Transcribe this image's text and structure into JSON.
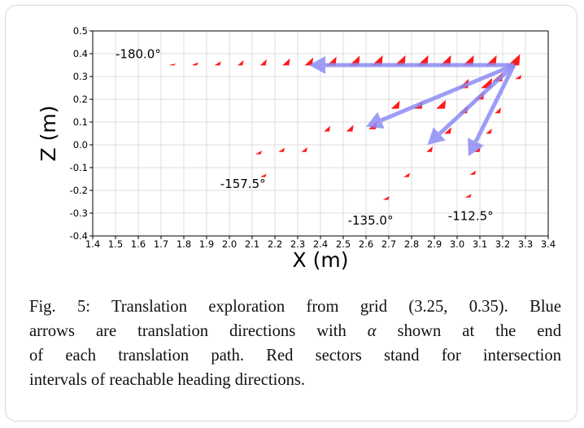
{
  "figure": {
    "caption_lines": [
      {
        "parts": [
          {
            "t": "Fig. 5: Translation exploration from grid (3.25, 0.35). Blue",
            "m": false
          }
        ]
      },
      {
        "parts": [
          {
            "t": "arrows are translation directions with ",
            "m": false
          },
          {
            "t": "α",
            "m": true
          },
          {
            "t": " shown at the end",
            "m": false
          }
        ]
      },
      {
        "parts": [
          {
            "t": "of each translation path. Red sectors stand for intersection",
            "m": false
          }
        ]
      },
      {
        "parts": [
          {
            "t": "intervals of reachable heading directions.",
            "m": false
          }
        ]
      }
    ]
  },
  "chart_data": {
    "type": "scatter",
    "xlabel": "X (m)",
    "ylabel": "Z (m)",
    "xlim": [
      1.4,
      3.4
    ],
    "ylim": [
      -0.4,
      0.5
    ],
    "xticks": [
      "1.4",
      "1.5",
      "1.6",
      "1.7",
      "1.8",
      "1.9",
      "2.0",
      "2.1",
      "2.2",
      "2.3",
      "2.4",
      "2.5",
      "2.6",
      "2.7",
      "2.8",
      "2.9",
      "3.0",
      "3.1",
      "3.2",
      "3.3",
      "3.4"
    ],
    "yticks": [
      "0.5",
      "0.4",
      "0.3",
      "0.2",
      "0.1",
      "0.0",
      "-0.1",
      "-0.2",
      "-0.3",
      "-0.4"
    ],
    "grid": true,
    "origin": [
      3.25,
      0.35
    ],
    "colors": {
      "sector": "#ff1a1a",
      "arrow": "#8c8cf5"
    },
    "arrows": [
      {
        "to": [
          2.35,
          0.35
        ]
      },
      {
        "to": [
          2.6,
          0.08
        ]
      },
      {
        "to": [
          2.87,
          0.0
        ]
      },
      {
        "to": [
          3.05,
          -0.05
        ]
      }
    ],
    "paths": [
      {
        "label": "-180.0°",
        "label_pos": [
          1.5,
          0.38
        ],
        "sectors": [
          {
            "x": 1.75,
            "z": 0.35,
            "h": 0.003
          },
          {
            "x": 1.85,
            "z": 0.35,
            "h": 0.01
          },
          {
            "x": 1.95,
            "z": 0.35,
            "h": 0.014
          },
          {
            "x": 2.05,
            "z": 0.35,
            "h": 0.018
          },
          {
            "x": 2.15,
            "z": 0.35,
            "h": 0.022
          },
          {
            "x": 2.25,
            "z": 0.35,
            "h": 0.026
          },
          {
            "x": 2.35,
            "z": 0.35,
            "h": 0.03
          },
          {
            "x": 2.45,
            "z": 0.35,
            "h": 0.034
          },
          {
            "x": 2.55,
            "z": 0.35,
            "h": 0.038
          },
          {
            "x": 2.65,
            "z": 0.35,
            "h": 0.04
          },
          {
            "x": 2.75,
            "z": 0.35,
            "h": 0.04
          },
          {
            "x": 2.85,
            "z": 0.35,
            "h": 0.04
          },
          {
            "x": 2.95,
            "z": 0.35,
            "h": 0.04
          },
          {
            "x": 3.05,
            "z": 0.35,
            "h": 0.04
          },
          {
            "x": 3.15,
            "z": 0.35,
            "h": 0.04
          },
          {
            "x": 3.25,
            "z": 0.35,
            "h": 0.045
          }
        ]
      },
      {
        "label": "-157.5°",
        "label_pos": [
          1.96,
          -0.19
        ],
        "sectors": [
          {
            "x": 2.15,
            "z": -0.14,
            "h": 0.01
          },
          {
            "x": 2.13,
            "z": -0.04,
            "h": 0.012
          },
          {
            "x": 2.23,
            "z": -0.03,
            "h": 0.014
          },
          {
            "x": 2.33,
            "z": -0.03,
            "h": 0.016
          },
          {
            "x": 2.43,
            "z": 0.06,
            "h": 0.02
          },
          {
            "x": 2.53,
            "z": 0.06,
            "h": 0.024
          },
          {
            "x": 2.63,
            "z": 0.07,
            "h": 0.028
          },
          {
            "x": 2.73,
            "z": 0.16,
            "h": 0.03
          },
          {
            "x": 2.83,
            "z": 0.16,
            "h": 0.032
          },
          {
            "x": 2.93,
            "z": 0.16,
            "h": 0.034
          },
          {
            "x": 3.03,
            "z": 0.25,
            "h": 0.036
          },
          {
            "x": 3.13,
            "z": 0.25,
            "h": 0.04
          }
        ]
      },
      {
        "label": "-135.0°",
        "label_pos": [
          2.52,
          -0.35
        ],
        "sectors": [
          {
            "x": 2.69,
            "z": -0.24,
            "h": 0.012
          },
          {
            "x": 2.78,
            "z": -0.14,
            "h": 0.014
          },
          {
            "x": 2.88,
            "z": -0.03,
            "h": 0.02
          },
          {
            "x": 2.96,
            "z": 0.05,
            "h": 0.024
          },
          {
            "x": 3.03,
            "z": 0.14,
            "h": 0.03
          },
          {
            "x": 3.1,
            "z": 0.2,
            "h": 0.032
          },
          {
            "x": 3.18,
            "z": 0.28,
            "h": 0.036
          }
        ]
      },
      {
        "label": "-112.5°",
        "label_pos": [
          2.96,
          -0.33
        ],
        "sectors": [
          {
            "x": 3.05,
            "z": -0.23,
            "h": 0.012
          },
          {
            "x": 3.07,
            "z": -0.13,
            "h": 0.014
          },
          {
            "x": 3.09,
            "z": -0.03,
            "h": 0.016
          },
          {
            "x": 3.14,
            "z": 0.05,
            "h": 0.018
          },
          {
            "x": 3.18,
            "z": 0.14,
            "h": 0.02
          },
          {
            "x": 3.27,
            "z": 0.29,
            "h": 0.014
          }
        ]
      }
    ]
  }
}
